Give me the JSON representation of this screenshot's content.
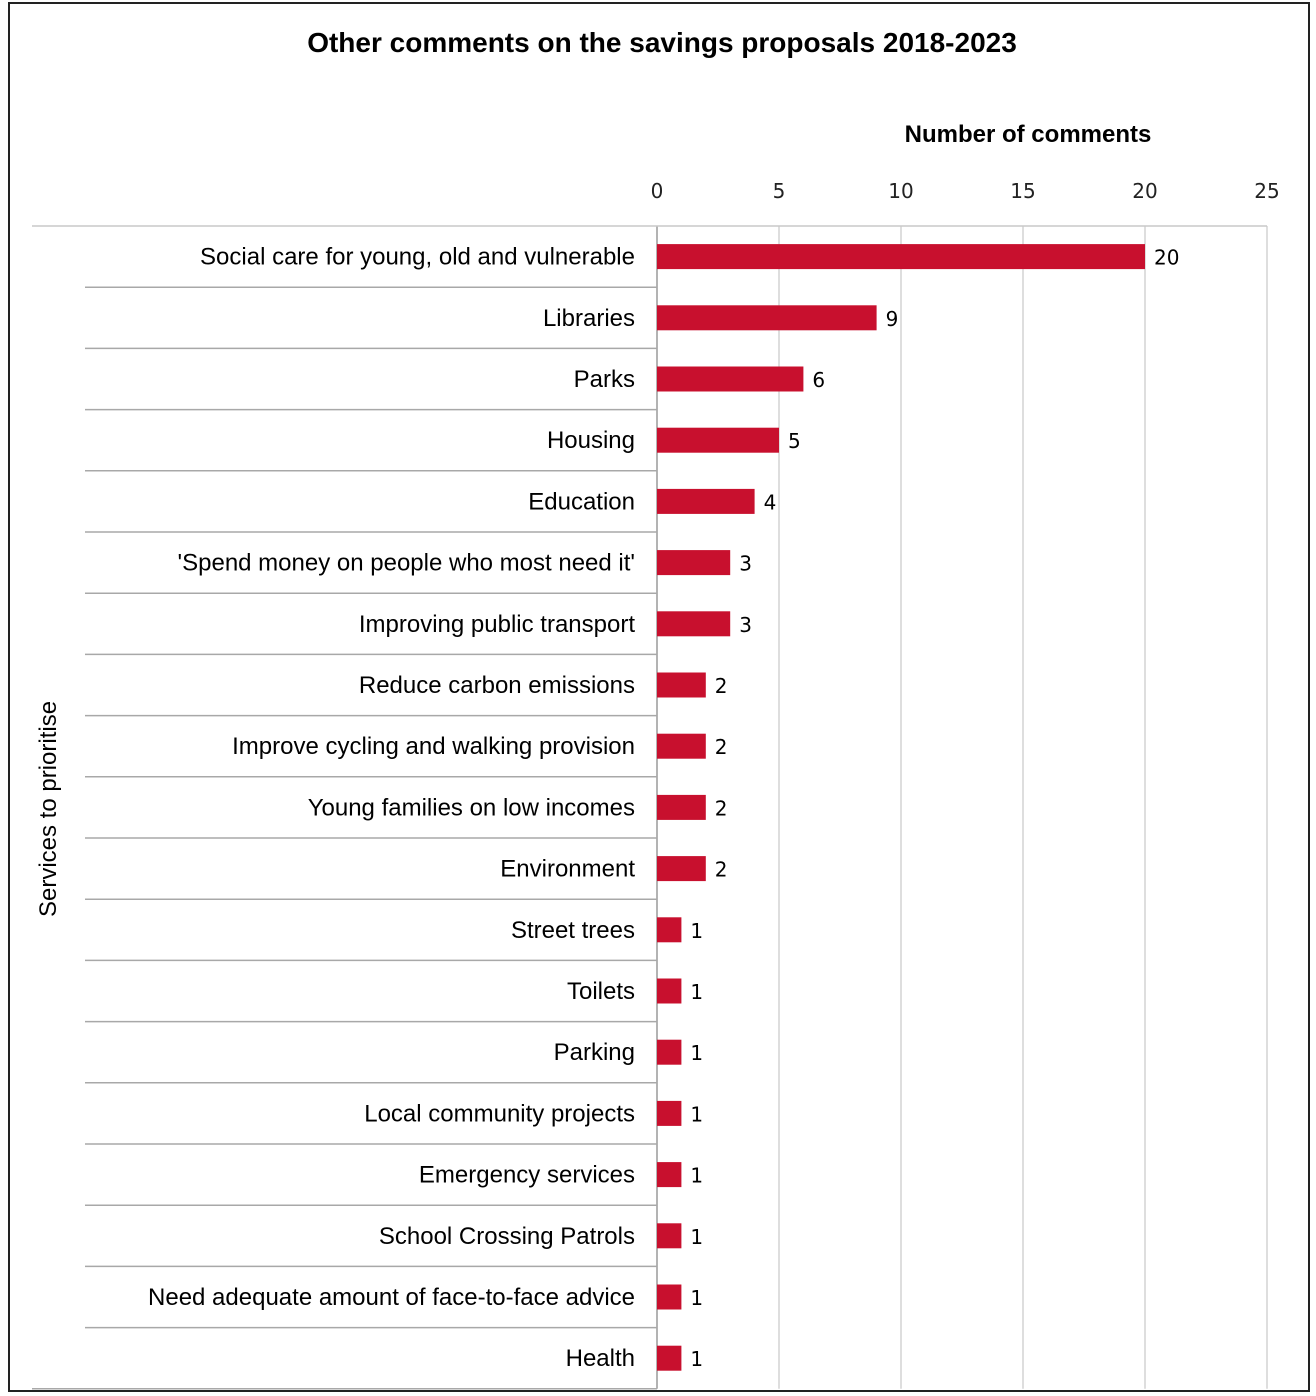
{
  "chart_data": {
    "type": "bar",
    "orientation": "horizontal",
    "title": "Other comments on the savings proposals 2018-2023",
    "xlabel": "Number of comments",
    "ylabel": "Services to prioritise",
    "xlim": [
      0,
      25
    ],
    "xticks": [
      0,
      5,
      10,
      15,
      20,
      25
    ],
    "x_axis_position": "top",
    "grid": "vertical",
    "bar_color": "#c8102e",
    "categories": [
      "Social care for young, old and vulnerable",
      "Libraries",
      "Parks",
      "Housing",
      "Education",
      "'Spend money on people who most need it'",
      "Improving public transport",
      "Reduce carbon emissions",
      "Improve cycling and walking provision",
      "Young families on low incomes",
      "Environment",
      "Street trees",
      "Toilets",
      "Parking",
      "Local community projects",
      "Emergency services",
      "School Crossing Patrols",
      "Need adequate amount of face-to-face advice",
      "Health"
    ],
    "values": [
      20,
      9,
      6,
      5,
      4,
      3,
      3,
      2,
      2,
      2,
      2,
      1,
      1,
      1,
      1,
      1,
      1,
      1,
      1
    ]
  }
}
